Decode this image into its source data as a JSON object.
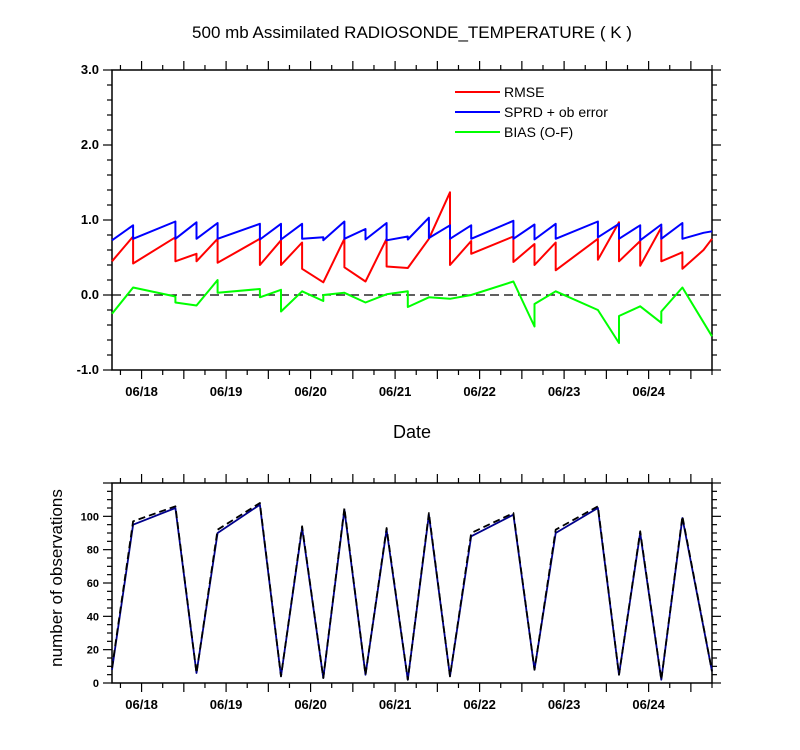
{
  "figure": {
    "title": "500 mb Assimilated RADIOSONDE_TEMPERATURE ( K )"
  },
  "chart_data": [
    {
      "type": "line",
      "title": "500 mb Assimilated RADIOSONDE_TEMPERATURE ( K )",
      "xlabel": "Date",
      "ylabel": "",
      "x_unit": "days after 06/17 00Z",
      "xlim": [
        0.65,
        7.75
      ],
      "ylim": [
        -1.0,
        3.0
      ],
      "x_tick_labels": [
        "06/18",
        "06/19",
        "06/20",
        "06/21",
        "06/22",
        "06/23",
        "06/24"
      ],
      "x_tick_values": [
        1,
        2,
        3,
        4,
        5,
        6,
        7
      ],
      "y_tick_labels": [
        "-1.0",
        "0.0",
        "1.0",
        "2.0",
        "3.0"
      ],
      "y_tick_values": [
        -1,
        0,
        1,
        2,
        3
      ],
      "zero_line": "dashed",
      "legend": {
        "placement": "top-right"
      },
      "series": [
        {
          "name": "RMSE",
          "color": "#ff0000",
          "x": [
            0.65,
            0.9,
            0.9,
            1.4,
            1.4,
            1.65,
            1.65,
            1.9,
            1.9,
            2.4,
            2.4,
            2.65,
            2.65,
            2.9,
            2.9,
            3.15,
            3.4,
            3.4,
            3.65,
            3.9,
            3.9,
            4.15,
            4.4,
            4.65,
            4.65,
            4.9,
            4.9,
            5.4,
            5.4,
            5.65,
            5.65,
            5.9,
            5.9,
            6.4,
            6.4,
            6.65,
            6.65,
            6.9,
            6.9,
            7.15,
            7.15,
            7.4,
            7.4,
            7.65,
            7.75
          ],
          "y": [
            0.45,
            0.78,
            0.42,
            0.77,
            0.45,
            0.55,
            0.45,
            0.75,
            0.43,
            0.75,
            0.4,
            0.73,
            0.4,
            0.7,
            0.35,
            0.17,
            0.75,
            0.37,
            0.18,
            0.75,
            0.38,
            0.36,
            0.75,
            1.37,
            0.4,
            0.72,
            0.55,
            0.78,
            0.44,
            0.68,
            0.4,
            0.7,
            0.33,
            0.75,
            0.47,
            0.97,
            0.45,
            0.72,
            0.39,
            0.9,
            0.45,
            0.57,
            0.35,
            0.6,
            0.75
          ]
        },
        {
          "name": "SPRD + ob error",
          "color": "#0000ff",
          "x": [
            0.65,
            0.9,
            0.9,
            1.4,
            1.4,
            1.65,
            1.65,
            1.9,
            1.9,
            2.4,
            2.4,
            2.65,
            2.65,
            2.9,
            2.9,
            3.15,
            3.15,
            3.4,
            3.4,
            3.65,
            3.65,
            3.9,
            3.9,
            4.15,
            4.15,
            4.4,
            4.4,
            4.65,
            4.65,
            4.9,
            4.9,
            5.4,
            5.4,
            5.65,
            5.65,
            5.9,
            5.9,
            6.4,
            6.4,
            6.65,
            6.65,
            6.9,
            6.9,
            7.15,
            7.15,
            7.4,
            7.4,
            7.65,
            7.75
          ],
          "y": [
            0.73,
            0.93,
            0.75,
            0.98,
            0.75,
            0.97,
            0.75,
            0.96,
            0.75,
            0.95,
            0.74,
            0.95,
            0.74,
            0.95,
            0.75,
            0.77,
            0.73,
            0.98,
            0.75,
            0.88,
            0.74,
            0.96,
            0.73,
            0.78,
            0.74,
            1.03,
            0.76,
            0.93,
            0.75,
            0.93,
            0.75,
            0.99,
            0.75,
            0.94,
            0.74,
            0.95,
            0.75,
            0.98,
            0.77,
            0.95,
            0.75,
            0.93,
            0.73,
            0.94,
            0.75,
            0.96,
            0.75,
            0.83,
            0.85
          ]
        },
        {
          "name": "BIAS (O-F)",
          "color": "#00ff00",
          "x": [
            0.65,
            0.9,
            1.4,
            1.4,
            1.65,
            1.9,
            1.9,
            2.4,
            2.4,
            2.65,
            2.65,
            2.9,
            3.15,
            3.15,
            3.4,
            3.65,
            3.9,
            4.15,
            4.15,
            4.4,
            4.65,
            4.9,
            5.4,
            5.65,
            5.65,
            5.9,
            6.4,
            6.65,
            6.65,
            6.9,
            7.15,
            7.15,
            7.4,
            7.75
          ],
          "y": [
            -0.25,
            0.1,
            -0.02,
            -0.1,
            -0.14,
            0.2,
            0.03,
            0.08,
            -0.03,
            0.07,
            -0.22,
            0.05,
            -0.08,
            0.0,
            0.03,
            -0.1,
            0.01,
            0.05,
            -0.16,
            -0.03,
            -0.05,
            0.0,
            0.18,
            -0.42,
            -0.12,
            0.05,
            -0.2,
            -0.64,
            -0.28,
            -0.15,
            -0.37,
            -0.22,
            0.1,
            -0.55
          ]
        }
      ]
    },
    {
      "type": "line",
      "title": "",
      "xlabel": "",
      "ylabel": "number of observations",
      "x_unit": "days after 06/17 00Z",
      "xlim": [
        0.65,
        7.75
      ],
      "ylim": [
        0,
        120
      ],
      "x_tick_labels": [
        "06/18",
        "06/19",
        "06/20",
        "06/21",
        "06/22",
        "06/23",
        "06/24"
      ],
      "x_tick_values": [
        1,
        2,
        3,
        4,
        5,
        6,
        7
      ],
      "y_tick_labels": [
        "0",
        "20",
        "40",
        "60",
        "80",
        "100"
      ],
      "y_tick_values": [
        0,
        20,
        40,
        60,
        80,
        100
      ],
      "series": [
        {
          "style": "solid",
          "color": "#00008b",
          "x": [
            0.65,
            0.9,
            1.4,
            1.65,
            1.9,
            2.4,
            2.65,
            2.9,
            3.15,
            3.4,
            3.65,
            3.9,
            4.15,
            4.4,
            4.65,
            4.9,
            5.4,
            5.65,
            5.9,
            6.4,
            6.65,
            6.9,
            7.15,
            7.4,
            7.75
          ],
          "y": [
            8,
            95,
            105,
            6,
            90,
            107,
            4,
            93,
            3,
            104,
            5,
            92,
            2,
            101,
            4,
            88,
            101,
            8,
            90,
            105,
            5,
            90,
            2,
            99,
            7
          ]
        },
        {
          "style": "dashed",
          "color": "#000000",
          "x": [
            0.65,
            0.9,
            1.4,
            1.65,
            1.9,
            2.4,
            2.65,
            2.9,
            3.15,
            3.4,
            3.65,
            3.9,
            4.15,
            4.4,
            4.65,
            4.9,
            5.4,
            5.65,
            5.9,
            6.4,
            6.65,
            6.9,
            7.15,
            7.4,
            7.75
          ],
          "y": [
            9,
            97,
            106,
            6,
            92,
            108,
            4,
            94,
            3,
            105,
            5,
            93,
            2,
            102,
            4,
            90,
            102,
            8,
            92,
            106,
            5,
            91,
            2,
            100,
            7
          ]
        }
      ]
    }
  ]
}
